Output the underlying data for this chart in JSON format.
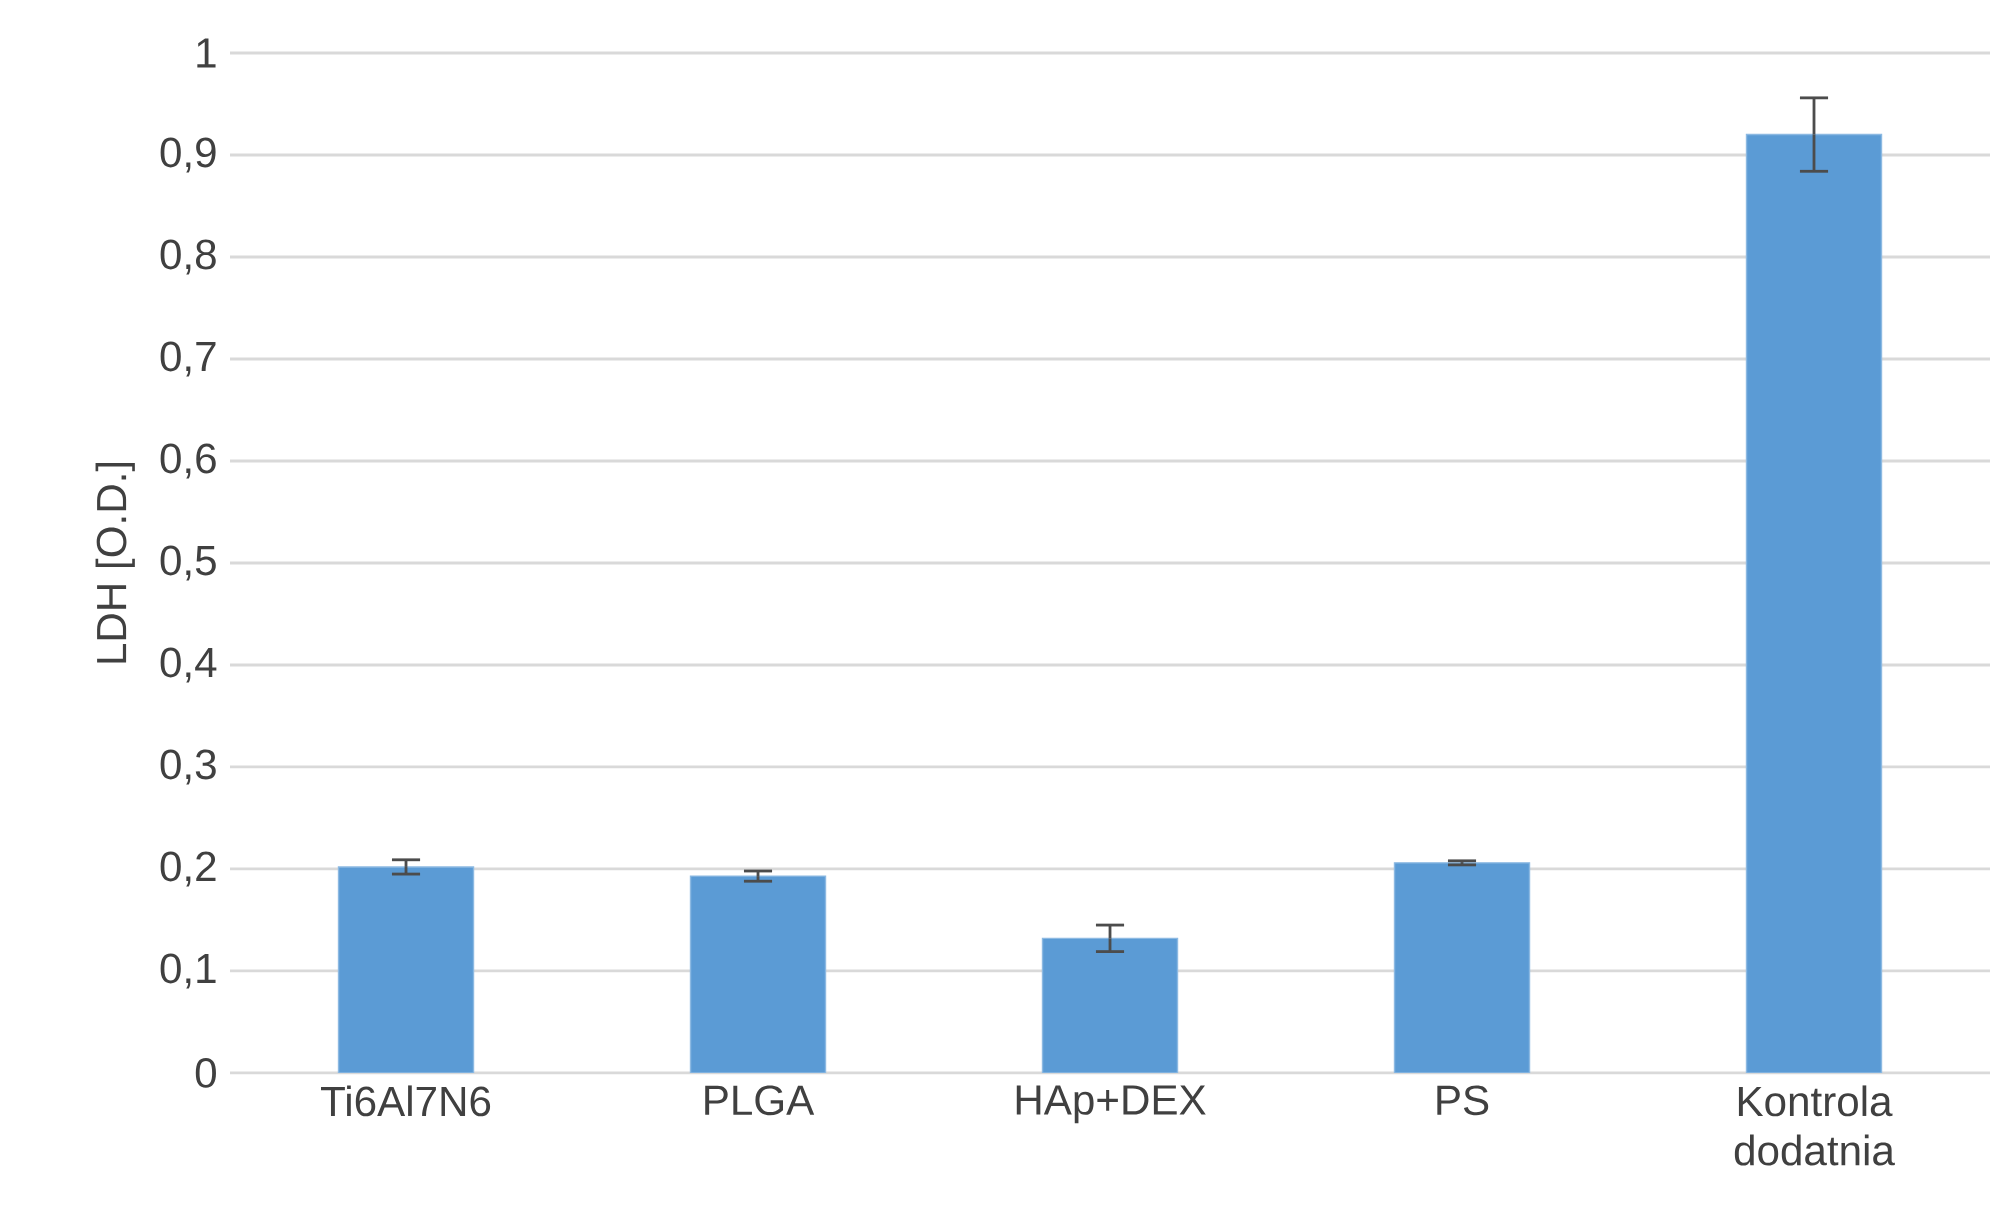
{
  "chart_data": {
    "type": "bar",
    "ylabel": "LDH [O.D.]",
    "categories": [
      "Ti6Al7N6",
      "PLGA",
      "HAp+DEX",
      "PS",
      "Kontrola dodatnia"
    ],
    "values": [
      0.202,
      0.193,
      0.132,
      0.206,
      0.92
    ],
    "errors": [
      0.007,
      0.005,
      0.013,
      0.002,
      0.036
    ],
    "color": "#5b9bd5",
    "ylim": [
      0,
      1
    ],
    "yticks": [
      0,
      {
        "value": 0.1,
        "label": "0,1"
      },
      {
        "value": 0.2,
        "label": "0,2"
      },
      {
        "value": 0.3,
        "label": "0,3"
      },
      {
        "value": 0.4,
        "label": "0,4"
      },
      {
        "value": 0.5,
        "label": "0,5"
      },
      {
        "value": 0.6,
        "label": "0,6"
      },
      {
        "value": 0.7,
        "label": "0,7"
      },
      {
        "value": 0.8,
        "label": "0,8"
      },
      {
        "value": 0.9,
        "label": "0,9"
      },
      1
    ],
    "grid": "y"
  }
}
